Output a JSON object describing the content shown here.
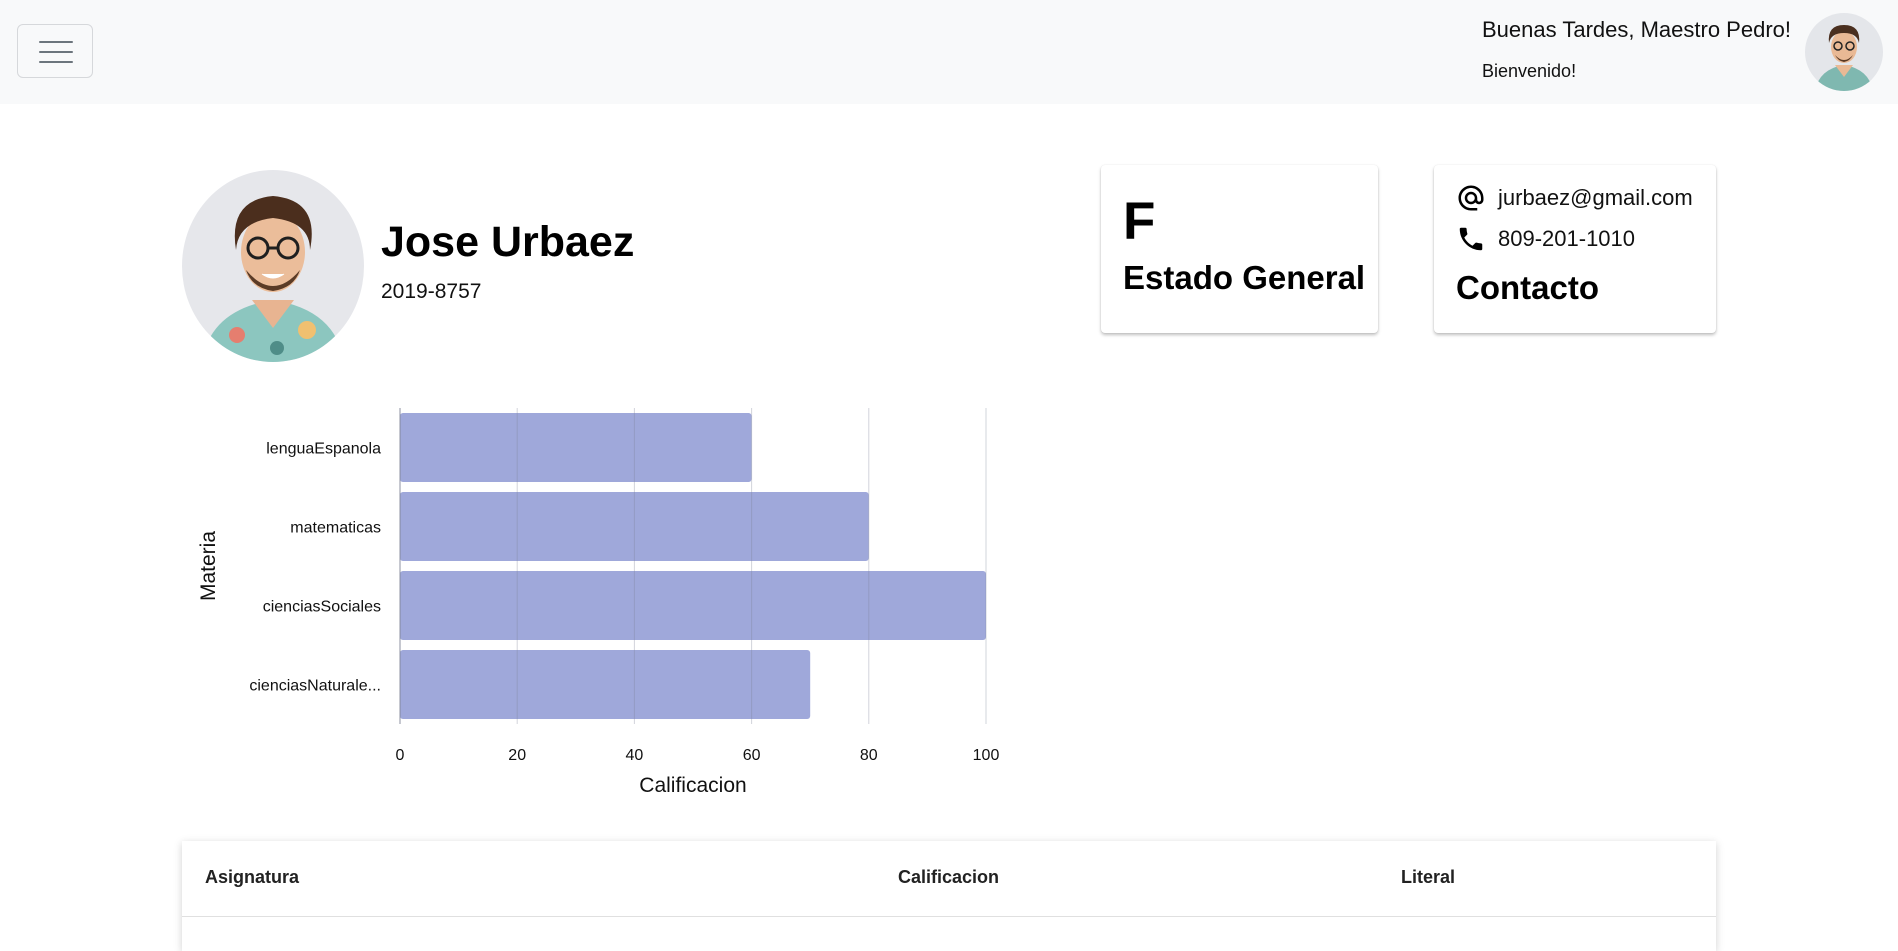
{
  "header": {
    "greeting": "Buenas Tardes, Maestro Pedro!",
    "subtitle": "Bienvenido!",
    "menu_icon": "hamburger-menu-icon"
  },
  "student": {
    "name": "Jose Urbaez",
    "id": "2019-8757"
  },
  "status_card": {
    "value": "F",
    "title": "Estado General"
  },
  "contact_card": {
    "email": "jurbaez@gmail.com",
    "phone": "809-201-1010",
    "title": "Contacto",
    "email_icon": "at-sign-icon",
    "phone_icon": "phone-icon"
  },
  "chart_data": {
    "type": "bar",
    "orientation": "horizontal",
    "categories": [
      "lenguaEspanola",
      "matematicas",
      "cienciasSociales",
      "cienciasNaturale..."
    ],
    "values": [
      60,
      80,
      100,
      70
    ],
    "xlabel": "Calificacion",
    "ylabel": "Materia",
    "xlim": [
      0,
      100
    ],
    "xticks": [
      "0",
      "20",
      "40",
      "60",
      "80",
      "100"
    ],
    "grid": true,
    "bar_color": "#9fa8da"
  },
  "table": {
    "headers": [
      "Asignatura",
      "Calificacion",
      "Literal"
    ]
  }
}
